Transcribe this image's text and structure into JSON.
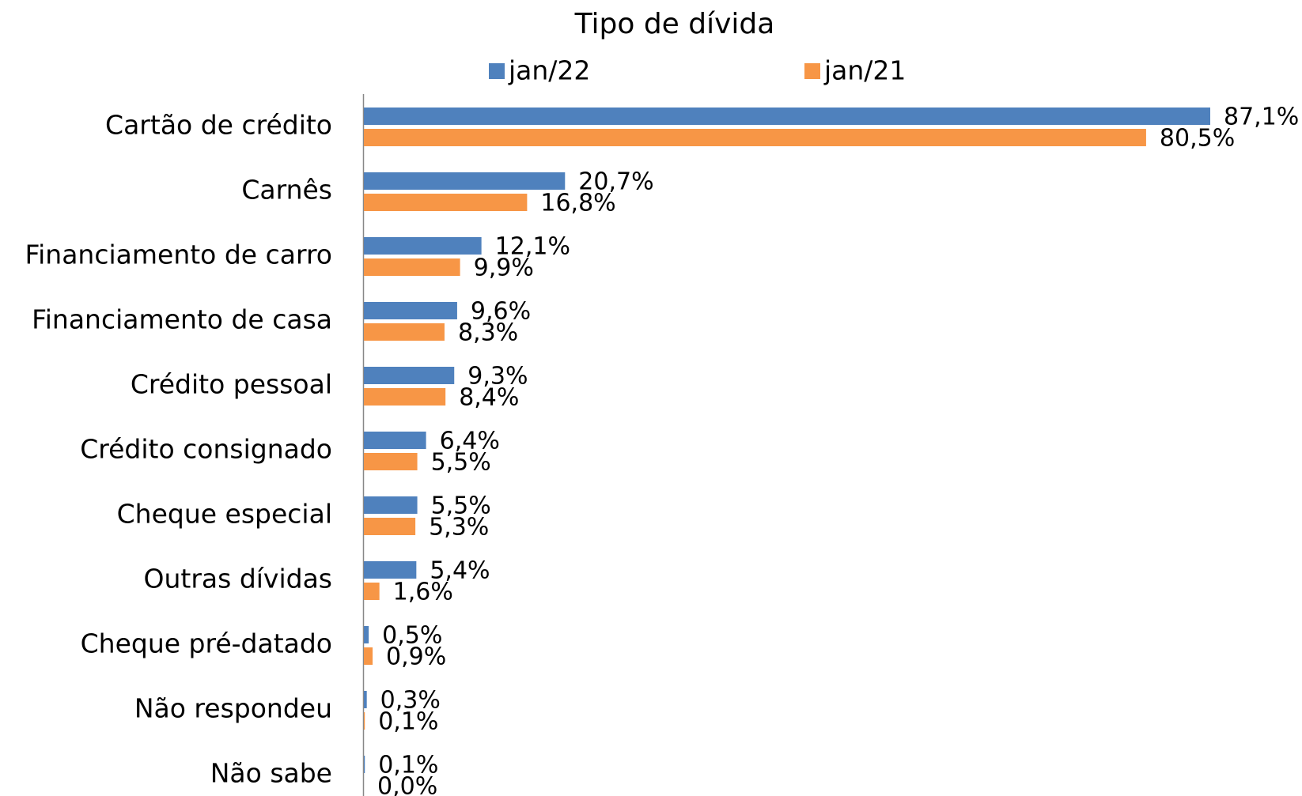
{
  "chart_data": {
    "type": "bar",
    "orientation": "horizontal",
    "title": "Tipo de dívida",
    "categories": [
      "Cartão de crédito",
      "Carnês",
      "Financiamento de carro",
      "Financiamento de casa",
      "Crédito pessoal",
      "Crédito consignado",
      "Cheque especial",
      "Outras dívidas",
      "Cheque pré-datado",
      "Não respondeu",
      "Não sabe"
    ],
    "series": [
      {
        "name": "jan/22",
        "color": "#4f81bd",
        "values": [
          87.1,
          20.7,
          12.1,
          9.6,
          9.3,
          6.4,
          5.5,
          5.4,
          0.5,
          0.3,
          0.1
        ],
        "value_labels": [
          "87,1%",
          "20,7%",
          "12,1%",
          "9,6%",
          "9,3%",
          "6,4%",
          "5,5%",
          "5,4%",
          "0,5%",
          "0,3%",
          "0,1%"
        ]
      },
      {
        "name": "jan/21",
        "color": "#f79646",
        "values": [
          80.5,
          16.8,
          9.9,
          8.3,
          8.4,
          5.5,
          5.3,
          1.6,
          0.9,
          0.1,
          0.0
        ],
        "value_labels": [
          "80,5%",
          "16,8%",
          "9,9%",
          "8,3%",
          "8,4%",
          "5,5%",
          "5,3%",
          "1,6%",
          "0,9%",
          "0,1%",
          "0,0%"
        ]
      }
    ],
    "legend": "top"
  }
}
